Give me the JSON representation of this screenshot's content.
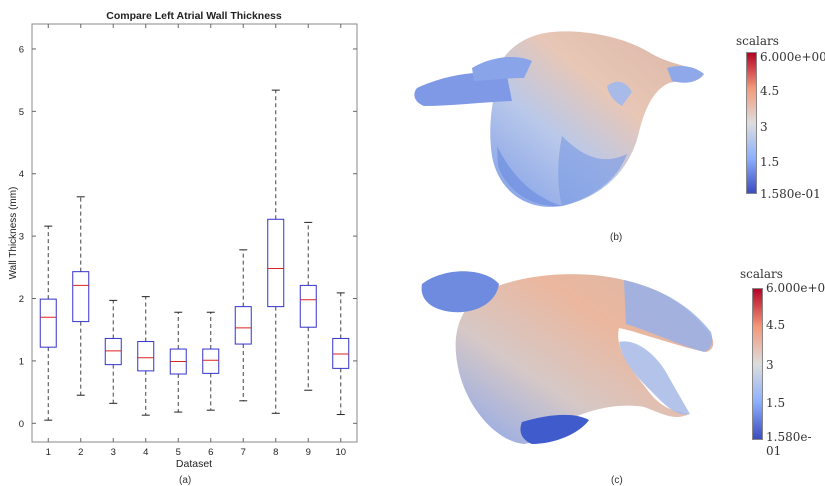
{
  "figure": {
    "panel_a": "(a)",
    "panel_b": "(b)",
    "panel_c": "(c)"
  },
  "chart_data": {
    "type": "box",
    "title": "Compare Left Atrial Wall Thickness",
    "xlabel": "Dataset",
    "ylabel": "Wall Thickness (mm)",
    "categories": [
      "1",
      "2",
      "3",
      "4",
      "5",
      "6",
      "7",
      "8",
      "9",
      "10"
    ],
    "ylim": [
      -0.3,
      6.4
    ],
    "yticks": [
      0,
      1,
      2,
      3,
      4,
      5,
      6
    ],
    "grid": false,
    "boxes": [
      {
        "whisker_low": 0.05,
        "q1": 1.22,
        "median": 1.7,
        "q3": 1.99,
        "whisker_high": 3.16
      },
      {
        "whisker_low": 0.45,
        "q1": 1.63,
        "median": 2.21,
        "q3": 2.43,
        "whisker_high": 3.63
      },
      {
        "whisker_low": 0.32,
        "q1": 0.94,
        "median": 1.16,
        "q3": 1.36,
        "whisker_high": 1.97
      },
      {
        "whisker_low": 0.13,
        "q1": 0.84,
        "median": 1.05,
        "q3": 1.31,
        "whisker_high": 2.03
      },
      {
        "whisker_low": 0.18,
        "q1": 0.79,
        "median": 0.99,
        "q3": 1.19,
        "whisker_high": 1.78
      },
      {
        "whisker_low": 0.21,
        "q1": 0.8,
        "median": 1.01,
        "q3": 1.19,
        "whisker_high": 1.78
      },
      {
        "whisker_low": 0.36,
        "q1": 1.27,
        "median": 1.53,
        "q3": 1.87,
        "whisker_high": 2.78
      },
      {
        "whisker_low": 0.16,
        "q1": 1.87,
        "median": 2.48,
        "q3": 3.27,
        "whisker_high": 5.34
      },
      {
        "whisker_low": 0.53,
        "q1": 1.54,
        "median": 1.98,
        "q3": 2.21,
        "whisker_high": 3.22
      },
      {
        "whisker_low": 0.14,
        "q1": 0.88,
        "median": 1.11,
        "q3": 1.36,
        "whisker_high": 2.09
      }
    ],
    "colors": {
      "box": "#3333cc",
      "median": "#dd2222",
      "whisker": "#444444"
    }
  },
  "colorbars": [
    {
      "title": "scalars",
      "max_label": "6.000e+00",
      "min_label": "1.580e-01",
      "ticks": [
        "4.5",
        "3",
        "1.5"
      ],
      "range": [
        0.158,
        6.0
      ]
    },
    {
      "title": "scalars",
      "max_label": "6.000e+00",
      "min_label": "1.580e-01",
      "ticks": [
        "4.5",
        "3",
        "1.5"
      ],
      "range": [
        0.158,
        6.0
      ]
    }
  ],
  "colormap": [
    "#3b4cc0",
    "#8db0fe",
    "#dddddd",
    "#f4987a",
    "#b40426"
  ]
}
